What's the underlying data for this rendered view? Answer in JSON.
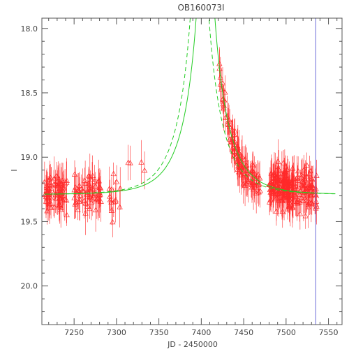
{
  "chart_data": {
    "type": "scatter",
    "title": "OB160073I",
    "xlabel": "JD - 2450000",
    "ylabel": "I",
    "xlim": [
      7212,
      7566
    ],
    "ylim": [
      20.3,
      17.92
    ],
    "y_inverted": true,
    "grid": false,
    "legend": "none",
    "x_ticks": [
      7250,
      7300,
      7350,
      7400,
      7450,
      7500,
      7550
    ],
    "x_tick_labels": [
      "7250",
      "7300",
      "7350",
      "7400",
      "7450",
      "7500",
      "7550"
    ],
    "y_ticks": [
      18.0,
      18.5,
      19.0,
      19.5,
      20.0
    ],
    "y_tick_labels": [
      "18.0",
      "18.5",
      "19.0",
      "19.5",
      "20.0"
    ],
    "vertical_line_x": 7535,
    "model": {
      "baseline": 19.29,
      "t0": 7405,
      "tE": 38,
      "u0_solid": 0.02,
      "u0_dashed": 0.02,
      "dashed_t0": 7398,
      "x_start": 7215,
      "x_end": 7558
    },
    "observations": {
      "groups": [
        {
          "x": [
            7215,
            7242
          ],
          "y": 19.27,
          "spread": 0.13,
          "count": 70
        },
        {
          "x": [
            7250,
            7282
          ],
          "y": 19.28,
          "spread": 0.12,
          "count": 60
        },
        {
          "x": [
            7290,
            7305
          ],
          "y": 19.31,
          "spread": 0.14,
          "count": 14
        },
        {
          "x": [
            7312,
            7335
          ],
          "y": 19.1,
          "spread": 0.08,
          "count": 4
        },
        {
          "x": [
            7421,
            7430
          ],
          "y": 18.5,
          "spread": 0.1,
          "count": 14
        },
        {
          "x": [
            7430,
            7450
          ],
          "y": 18.78,
          "spread": 0.11,
          "count": 50
        },
        {
          "x": [
            7450,
            7470
          ],
          "y": 19.05,
          "spread": 0.12,
          "count": 40
        },
        {
          "x": [
            7480,
            7500
          ],
          "y": 19.2,
          "spread": 0.13,
          "count": 90
        },
        {
          "x": [
            7500,
            7515
          ],
          "y": 19.25,
          "spread": 0.13,
          "count": 60
        },
        {
          "x": [
            7515,
            7536
          ],
          "y": 19.25,
          "spread": 0.14,
          "count": 60
        }
      ],
      "error": 0.12,
      "marker": "triangle",
      "color": "#ff2a2a"
    },
    "colors": {
      "frame": "#555555",
      "model": "#22cc22",
      "vline": "#6a6ad8",
      "points": "#ff2a2a"
    }
  }
}
